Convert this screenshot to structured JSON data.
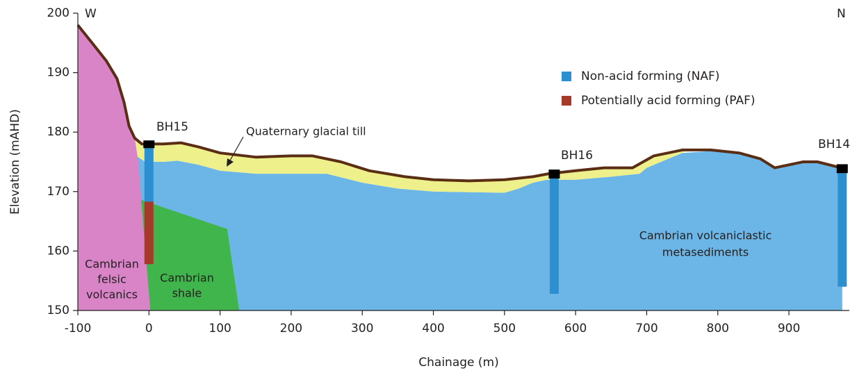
{
  "chart_data": {
    "type": "cross-section",
    "xlabel": "Chainage (m)",
    "ylabel": "Elevation (mAHD)",
    "xlim": [
      -100,
      985
    ],
    "ylim": [
      150,
      200
    ],
    "xticks": [
      -100,
      0,
      100,
      200,
      300,
      400,
      500,
      600,
      700,
      800,
      900
    ],
    "yticks": [
      150,
      160,
      170,
      180,
      190,
      200
    ],
    "corner_labels": [
      "W",
      "N"
    ],
    "surface": {
      "color": "#5a2e14",
      "x": [
        -100,
        -80,
        -60,
        -45,
        -35,
        -28,
        -20,
        -10,
        0,
        20,
        45,
        70,
        100,
        150,
        200,
        230,
        270,
        310,
        360,
        400,
        450,
        500,
        540,
        562,
        600,
        640,
        680,
        695,
        710,
        750,
        790,
        830,
        860,
        880,
        900,
        920,
        940,
        980
      ],
      "values": [
        198,
        195,
        192,
        189,
        185,
        181,
        179,
        178,
        178,
        178,
        178.2,
        177.5,
        176.5,
        175.8,
        176,
        176,
        175,
        173.5,
        172.5,
        172,
        171.8,
        172,
        172.5,
        173,
        173.5,
        174,
        174,
        175,
        176,
        177,
        177,
        176.5,
        175.5,
        174,
        174.5,
        175,
        175,
        173.8
      ]
    },
    "layers": [
      {
        "label": [
          "Cambrian volcaniclastic",
          "metasediments"
        ],
        "color": "#6bb6e6",
        "x": [
          -20,
          -18,
          -5,
          20,
          40,
          70,
          100,
          150,
          250,
          300,
          350,
          400,
          500,
          520,
          540,
          560,
          600,
          650,
          690,
          700,
          720,
          750,
          790,
          830,
          860,
          880,
          900,
          920,
          940,
          975,
          975,
          -2
        ],
        "y": [
          178,
          176,
          175,
          175,
          175.2,
          174.5,
          173.5,
          173,
          173,
          171.5,
          170.5,
          170,
          169.8,
          170.5,
          171.5,
          172,
          172,
          172.5,
          173,
          174,
          175,
          176.5,
          176.8,
          176.3,
          175.3,
          173.8,
          174.3,
          174.8,
          174.8,
          173.8,
          150,
          150
        ]
      },
      {
        "label": [
          "Quaternary glacial till"
        ],
        "color": "#eef08c",
        "x": [
          -22,
          -10,
          0,
          20,
          45,
          70,
          100,
          150,
          200,
          230,
          270,
          310,
          360,
          400,
          450,
          500,
          540,
          562,
          600,
          640,
          680,
          695,
          710,
          750,
          760,
          720,
          700,
          690,
          650,
          600,
          560,
          540,
          520,
          500,
          400,
          350,
          300,
          250,
          150,
          100,
          70,
          40,
          20,
          -5,
          -18
        ],
        "y": [
          179.5,
          178,
          178,
          178,
          178.2,
          177.5,
          176.5,
          175.8,
          176,
          176,
          175,
          173.5,
          172.5,
          172,
          171.8,
          172,
          172.5,
          173,
          173.5,
          174,
          174,
          175,
          176,
          177,
          177,
          175,
          174,
          173,
          172.5,
          172,
          172,
          171.5,
          170.5,
          169.8,
          170,
          170.5,
          171.5,
          173,
          173,
          173.5,
          174.5,
          175.2,
          175,
          175,
          176
        ]
      },
      {
        "label": [
          "Cambrian",
          "felsic",
          "volcanics"
        ],
        "color": "#d884c6",
        "x": [
          -100,
          -80,
          -60,
          -45,
          -35,
          -28,
          -20,
          -15,
          2,
          -100
        ],
        "y": [
          198,
          195,
          192,
          189,
          185,
          181,
          179,
          175,
          150,
          150
        ]
      },
      {
        "label": [
          "Cambrian",
          "shale"
        ],
        "color": "#3fb54b",
        "x": [
          -11,
          110,
          127,
          2
        ],
        "y": [
          168.6,
          163.7,
          150,
          150
        ]
      }
    ],
    "legend": [
      {
        "name": "Non-acid forming (NAF)",
        "color": "#2b8fd0"
      },
      {
        "name": "Potentially acid forming (PAF)",
        "color": "#a53a2b"
      }
    ],
    "boreholes": [
      {
        "name": "BH15",
        "x": 0,
        "collar": [
          178.6,
          177.3
        ],
        "naf": [
          177.3,
          168.3
        ],
        "paf": [
          168.3,
          157.8
        ]
      },
      {
        "name": "BH16",
        "x": 570,
        "collar": [
          173.7,
          172.2
        ],
        "naf": [
          172.2,
          152.8
        ]
      },
      {
        "name": "BH14",
        "x": 975,
        "collar": [
          174.6,
          173.1
        ],
        "naf": [
          173.1,
          154
        ]
      }
    ]
  }
}
